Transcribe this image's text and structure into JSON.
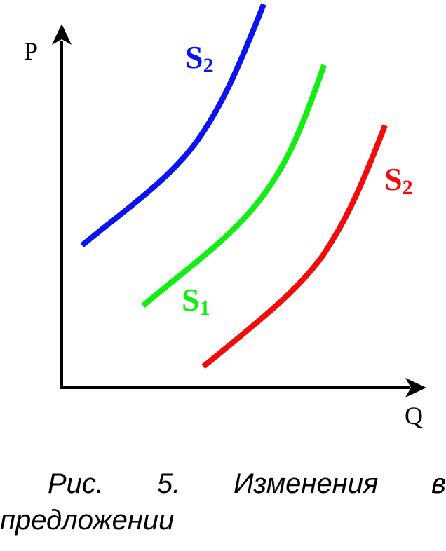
{
  "axes": {
    "y_label": "P",
    "x_label": "Q"
  },
  "curves": [
    {
      "id": "s2-left",
      "letter": "S",
      "subscript": "2",
      "color": "#0a14f0"
    },
    {
      "id": "s1",
      "letter": "S",
      "subscript": "1",
      "color": "#10f010"
    },
    {
      "id": "s2-right",
      "letter": "S",
      "subscript": "2",
      "color": "#f50a0a"
    }
  ],
  "caption": {
    "line1_words": [
      "Рис.",
      "5.",
      "Изменения",
      "в"
    ],
    "line2": "предложении"
  }
}
